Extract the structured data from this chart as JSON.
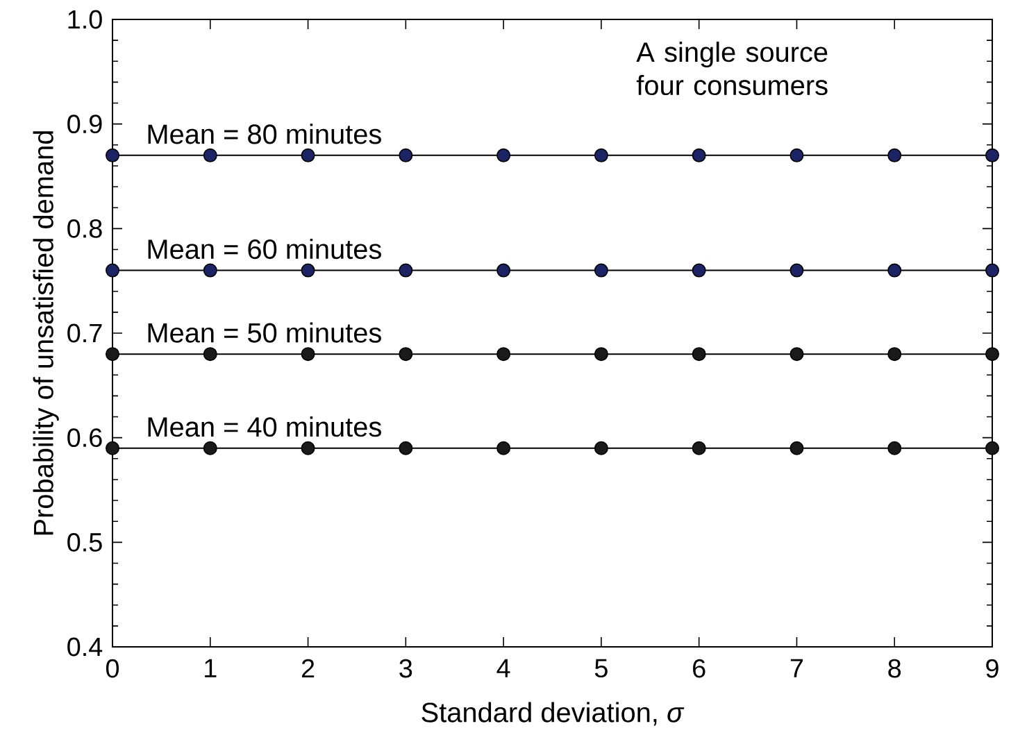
{
  "chart_data": {
    "type": "line",
    "xlabel": "Standard deviation, *σ*",
    "ylabel": "Probability of unsatisfied demand",
    "annotations": [
      "A single source four consumers"
    ],
    "x": [
      0,
      1,
      2,
      3,
      4,
      5,
      6,
      7,
      8,
      9
    ],
    "series": [
      {
        "name": "Mean = 80 minutes",
        "color": "#1c2466",
        "values": [
          0.87,
          0.87,
          0.87,
          0.87,
          0.87,
          0.87,
          0.87,
          0.87,
          0.87,
          0.87
        ]
      },
      {
        "name": "Mean = 60 minutes",
        "color": "#1c2466",
        "values": [
          0.76,
          0.76,
          0.76,
          0.76,
          0.76,
          0.76,
          0.76,
          0.76,
          0.76,
          0.76
        ]
      },
      {
        "name": "Mean = 50 minutes",
        "color": "#1a1a1a",
        "values": [
          0.68,
          0.68,
          0.68,
          0.68,
          0.68,
          0.68,
          0.68,
          0.68,
          0.68,
          0.68
        ]
      },
      {
        "name": "Mean = 40 minutes",
        "color": "#1a1a1a",
        "values": [
          0.59,
          0.59,
          0.59,
          0.59,
          0.59,
          0.59,
          0.59,
          0.59,
          0.59,
          0.59
        ]
      }
    ],
    "xlim": [
      0,
      9
    ],
    "ylim": [
      0.4,
      1.0
    ],
    "xticks": [
      0,
      1,
      2,
      3,
      4,
      5,
      6,
      7,
      8,
      9
    ],
    "yticks": [
      0.4,
      0.5,
      0.6,
      0.7,
      0.8,
      0.9,
      {
        "value": 1.0,
        "label": "1.0"
      }
    ],
    "grid": false,
    "legend": false,
    "marker": "circle",
    "line_style": "solid"
  }
}
